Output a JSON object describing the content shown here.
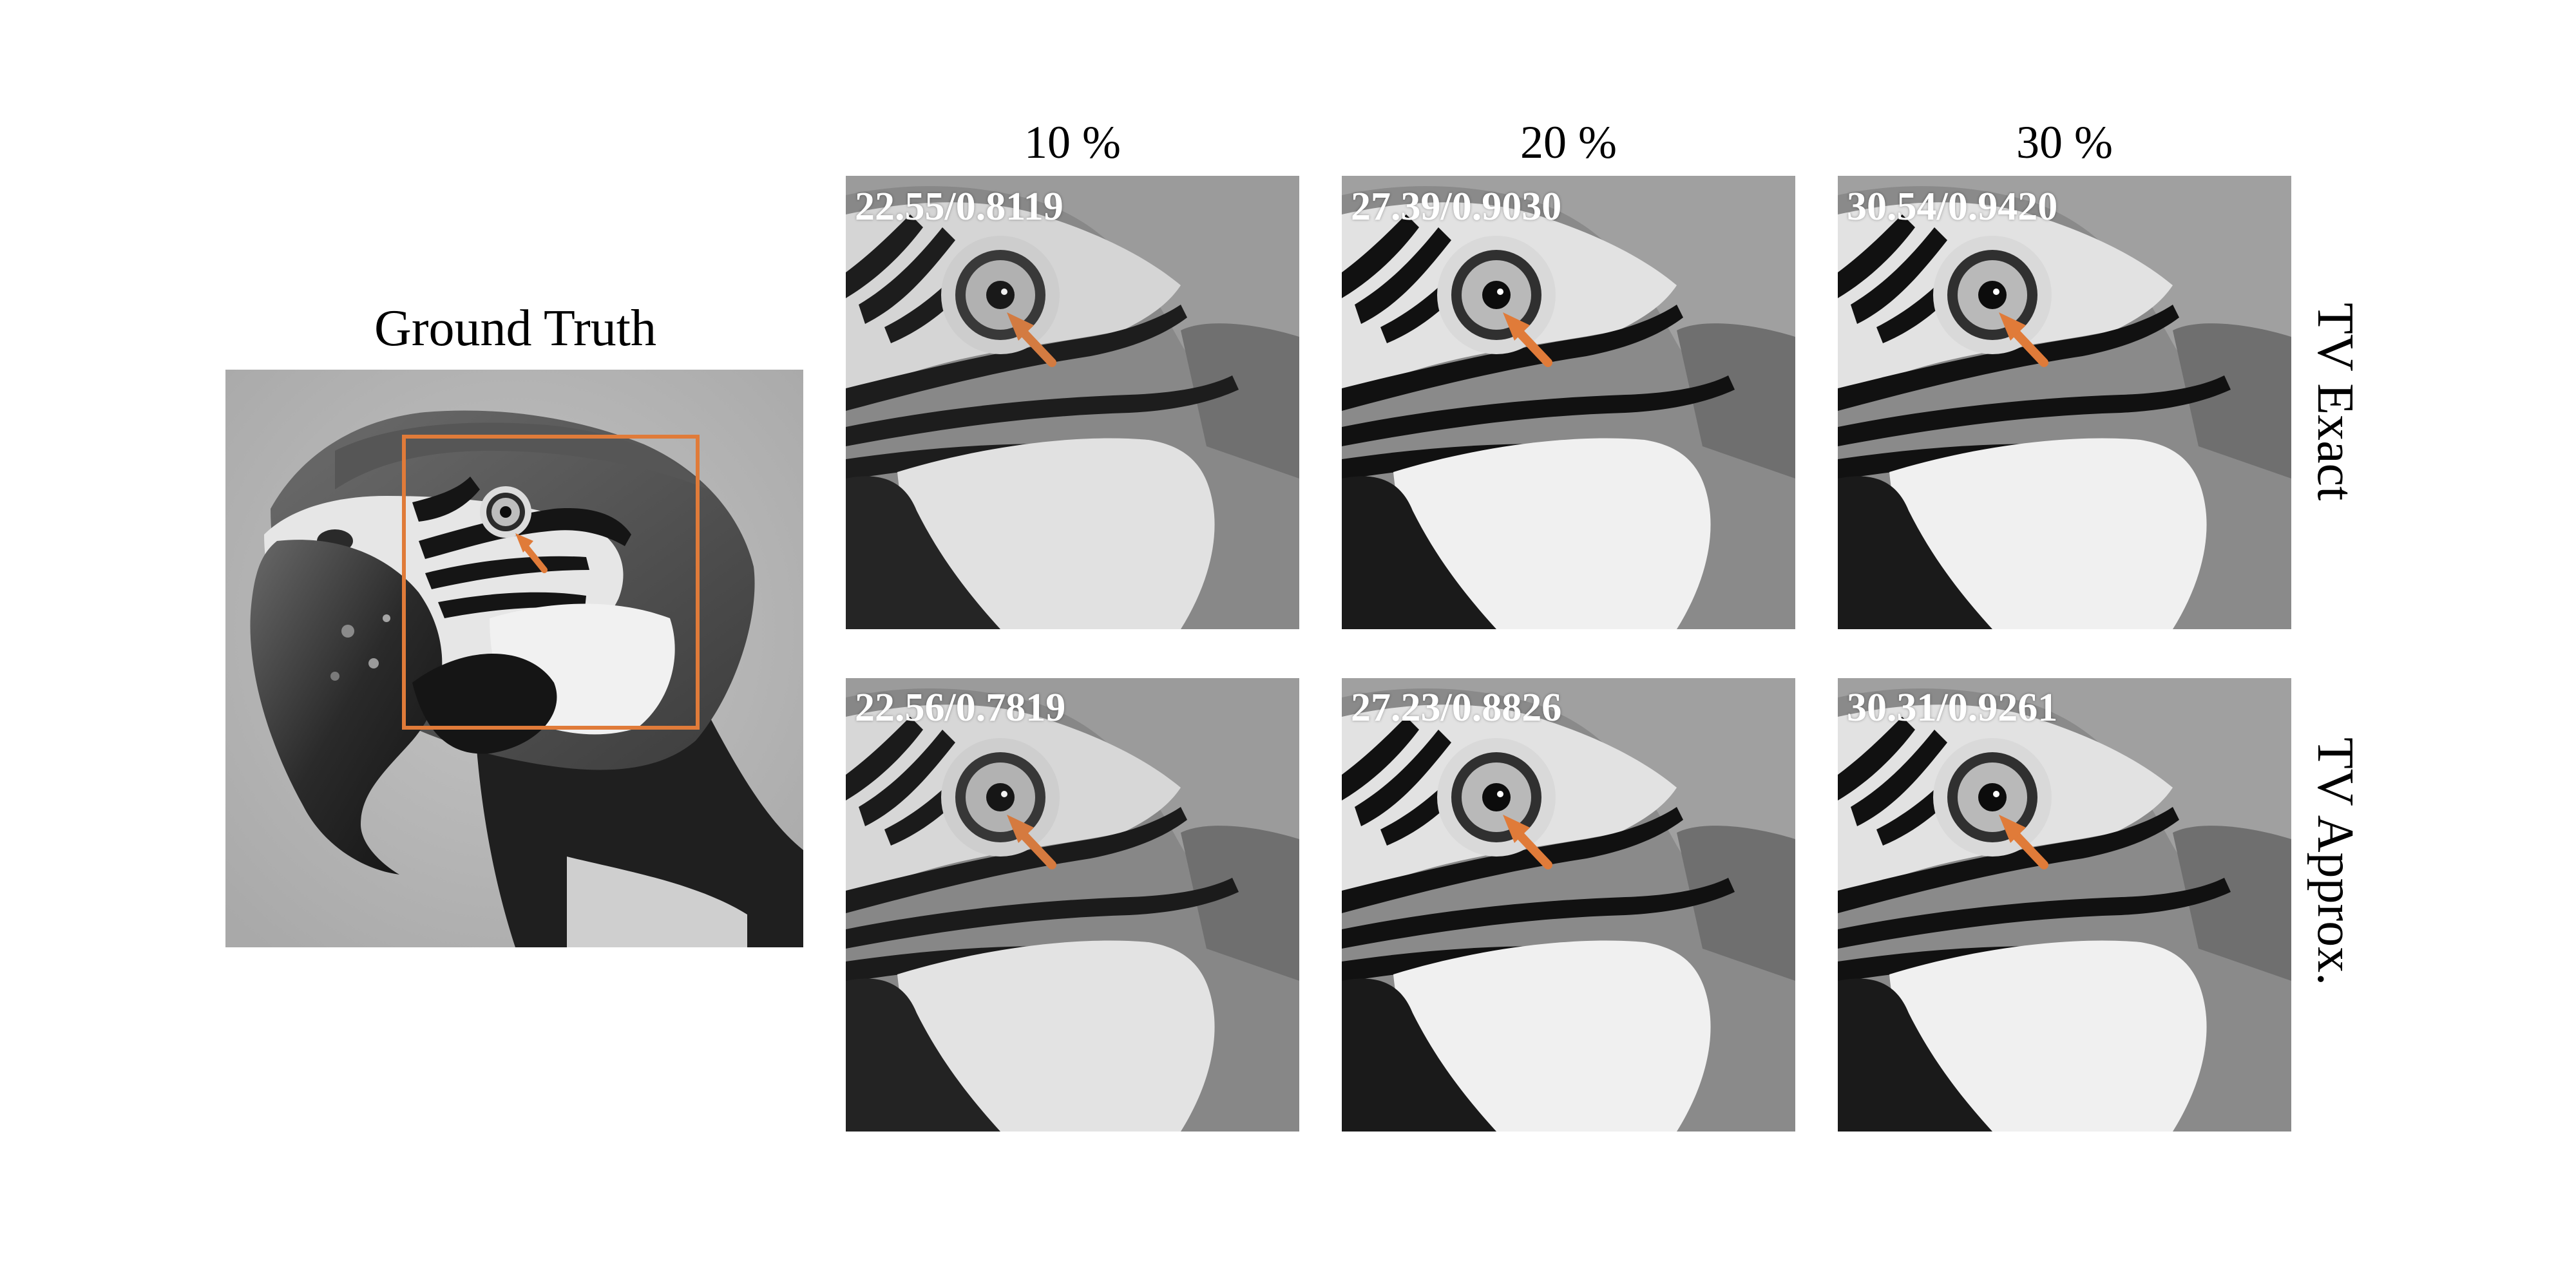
{
  "ground_truth": {
    "title": "Ground Truth"
  },
  "columns": [
    "10 %",
    "20 %",
    "30 %"
  ],
  "rows": [
    {
      "label": "TV Exact",
      "metrics": [
        "22.55/0.8119",
        "27.39/0.9030",
        "30.54/0.9420"
      ]
    },
    {
      "label": "TV Approx.",
      "metrics": [
        "22.56/0.7819",
        "27.23/0.8826",
        "30.31/0.9261"
      ]
    }
  ],
  "colors": {
    "highlight": "#e07b39"
  }
}
